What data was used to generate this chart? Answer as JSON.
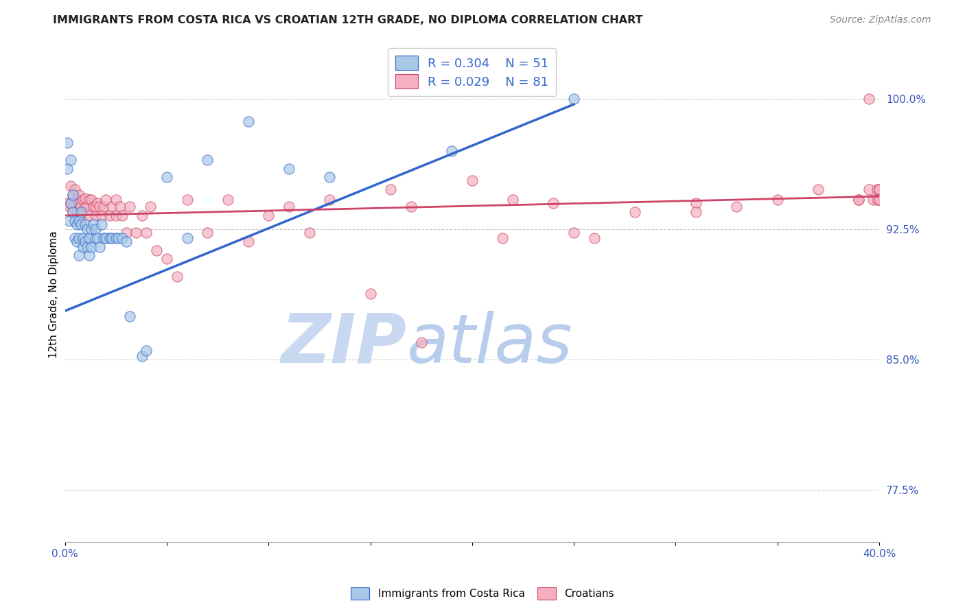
{
  "title": "IMMIGRANTS FROM COSTA RICA VS CROATIAN 12TH GRADE, NO DIPLOMA CORRELATION CHART",
  "source": "Source: ZipAtlas.com",
  "ylabel_label": "12th Grade, No Diploma",
  "ytick_labels": [
    "100.0%",
    "92.5%",
    "85.0%",
    "77.5%"
  ],
  "ytick_values": [
    1.0,
    0.925,
    0.85,
    0.775
  ],
  "xlim": [
    0.0,
    0.4
  ],
  "ylim": [
    0.745,
    1.03
  ],
  "legend_blue_r": "R = 0.304",
  "legend_blue_n": "N = 51",
  "legend_pink_r": "R = 0.029",
  "legend_pink_n": "N = 81",
  "legend_blue_label": "Immigrants from Costa Rica",
  "legend_pink_label": "Croatians",
  "blue_scatter_x": [
    0.001,
    0.001,
    0.002,
    0.003,
    0.003,
    0.004,
    0.004,
    0.005,
    0.005,
    0.006,
    0.006,
    0.007,
    0.007,
    0.007,
    0.008,
    0.008,
    0.009,
    0.009,
    0.01,
    0.01,
    0.011,
    0.011,
    0.012,
    0.012,
    0.013,
    0.013,
    0.014,
    0.015,
    0.015,
    0.016,
    0.017,
    0.018,
    0.019,
    0.02,
    0.022,
    0.023,
    0.025,
    0.026,
    0.028,
    0.03,
    0.032,
    0.038,
    0.04,
    0.05,
    0.06,
    0.07,
    0.09,
    0.11,
    0.13,
    0.19,
    0.25
  ],
  "blue_scatter_y": [
    0.96,
    0.975,
    0.93,
    0.965,
    0.94,
    0.945,
    0.935,
    0.93,
    0.92,
    0.928,
    0.918,
    0.93,
    0.92,
    0.91,
    0.928,
    0.935,
    0.92,
    0.915,
    0.928,
    0.918,
    0.925,
    0.915,
    0.92,
    0.91,
    0.925,
    0.915,
    0.928,
    0.92,
    0.925,
    0.92,
    0.915,
    0.928,
    0.92,
    0.92,
    0.92,
    0.92,
    0.92,
    0.92,
    0.92,
    0.918,
    0.875,
    0.852,
    0.855,
    0.955,
    0.92,
    0.965,
    0.987,
    0.96,
    0.955,
    0.97,
    1.0
  ],
  "pink_scatter_x": [
    0.001,
    0.002,
    0.003,
    0.003,
    0.004,
    0.004,
    0.005,
    0.005,
    0.006,
    0.006,
    0.007,
    0.007,
    0.008,
    0.008,
    0.009,
    0.009,
    0.01,
    0.01,
    0.011,
    0.012,
    0.012,
    0.013,
    0.014,
    0.015,
    0.015,
    0.016,
    0.017,
    0.018,
    0.019,
    0.02,
    0.022,
    0.023,
    0.025,
    0.025,
    0.027,
    0.028,
    0.03,
    0.032,
    0.035,
    0.038,
    0.04,
    0.042,
    0.045,
    0.05,
    0.055,
    0.06,
    0.07,
    0.08,
    0.09,
    0.1,
    0.11,
    0.12,
    0.13,
    0.15,
    0.16,
    0.17,
    0.2,
    0.22,
    0.25,
    0.28,
    0.31,
    0.33,
    0.35,
    0.37,
    0.39,
    0.395,
    0.397,
    0.399,
    0.399,
    0.4,
    0.4,
    0.4,
    0.4,
    0.4,
    0.31,
    0.39,
    0.215,
    0.175,
    0.24,
    0.26,
    0.395
  ],
  "pink_scatter_y": [
    0.94,
    0.938,
    0.94,
    0.95,
    0.935,
    0.945,
    0.94,
    0.948,
    0.942,
    0.935,
    0.94,
    0.945,
    0.938,
    0.93,
    0.935,
    0.942,
    0.938,
    0.943,
    0.938,
    0.942,
    0.933,
    0.942,
    0.938,
    0.933,
    0.938,
    0.94,
    0.938,
    0.933,
    0.938,
    0.942,
    0.933,
    0.938,
    0.933,
    0.942,
    0.938,
    0.933,
    0.923,
    0.938,
    0.923,
    0.933,
    0.923,
    0.938,
    0.913,
    0.908,
    0.898,
    0.942,
    0.923,
    0.942,
    0.918,
    0.933,
    0.938,
    0.923,
    0.942,
    0.888,
    0.948,
    0.938,
    0.953,
    0.942,
    0.923,
    0.935,
    0.94,
    0.938,
    0.942,
    0.948,
    0.942,
    0.948,
    0.942,
    0.948,
    0.942,
    0.948,
    0.942,
    0.948,
    0.942,
    0.948,
    0.935,
    0.942,
    0.92,
    0.86,
    0.94,
    0.92,
    1.0
  ],
  "blue_line_x": [
    0.0,
    0.25
  ],
  "blue_line_y": [
    0.878,
    0.997
  ],
  "pink_line_x": [
    0.0,
    0.4
  ],
  "pink_line_y": [
    0.933,
    0.944
  ],
  "blue_color": "#A8C8E8",
  "pink_color": "#F4B0C0",
  "blue_line_color": "#3366CC",
  "pink_line_color": "#CC4466",
  "watermark_zip": "ZIP",
  "watermark_atlas": "atlas",
  "watermark_color_zip": "#C8D8F0",
  "watermark_color_atlas": "#B0C4E8",
  "grid_color": "#CCCCCC",
  "title_color": "#222222",
  "right_ytick_color": "#3355BB",
  "xtick_label_color": "#3355BB",
  "bottom_legend_label_color": "#000000"
}
